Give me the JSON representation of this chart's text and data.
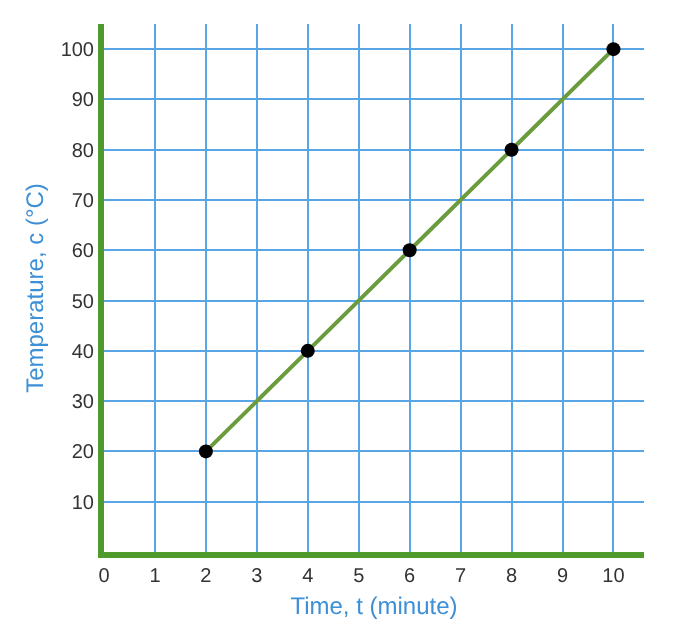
{
  "chart_data": {
    "type": "line",
    "xlabel": "Time, t (minute)",
    "ylabel": "Temperature, c (°C)",
    "x": [
      2,
      4,
      6,
      8,
      10
    ],
    "series": [
      {
        "color": "#6a9b3c",
        "values": [
          20,
          40,
          60,
          80,
          100
        ]
      }
    ],
    "marker": "circle",
    "line_style": "solid",
    "grid": true,
    "xlim": [
      0,
      10.6
    ],
    "ylim": [
      0,
      105
    ],
    "xticks": [
      0,
      1,
      2,
      3,
      4,
      5,
      6,
      7,
      8,
      9,
      10
    ],
    "yticks": [
      10,
      20,
      30,
      40,
      50,
      60,
      70,
      80,
      90,
      100
    ]
  }
}
